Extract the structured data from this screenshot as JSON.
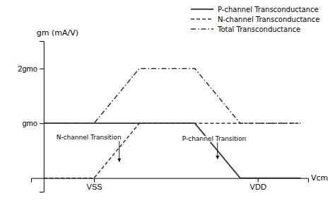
{
  "chart_data": {
    "type": "line",
    "x_label": "Vcm",
    "y_label": "gm (mA/V)",
    "xlim": [
      -0.5,
      10.5
    ],
    "ylim": [
      -0.5,
      5.0
    ],
    "xticks": [
      {
        "value": 2.0,
        "label": "VSS"
      },
      {
        "value": 8.5,
        "label": "VDD"
      }
    ],
    "yticks": [
      {
        "value": 2.0,
        "label": "gmo"
      },
      {
        "value": 4.0,
        "label": "2gmo"
      }
    ],
    "grid": false,
    "legend": "upper right",
    "series": [
      {
        "name": "P-channel Transconductance",
        "color": "#333333",
        "line_style": "solid",
        "x": [
          0.0,
          6.0,
          7.8,
          10.2
        ],
        "values": [
          2.0,
          2.0,
          0.0,
          0.0
        ]
      },
      {
        "name": "N-channel Transconductance",
        "color": "#333333",
        "line_style": "dashed",
        "x": [
          0.0,
          2.0,
          3.8,
          10.2
        ],
        "values": [
          0.0,
          0.0,
          2.0,
          2.0
        ]
      },
      {
        "name": "Total Transconductance",
        "color": "#333333",
        "line_style": "dashdot",
        "x": [
          0.0,
          2.0,
          3.8,
          6.0,
          7.8,
          10.2
        ],
        "values": [
          2.0,
          2.0,
          4.0,
          4.0,
          2.0,
          2.0
        ]
      }
    ],
    "annotations": [
      {
        "text": "N-channel Transition",
        "xy": [
          3.0,
          0.6
        ],
        "xytext": [
          0.5,
          1.4
        ]
      },
      {
        "text": "P-channel Transition",
        "xy": [
          6.9,
          0.7
        ],
        "xytext": [
          5.5,
          1.35
        ]
      }
    ]
  }
}
